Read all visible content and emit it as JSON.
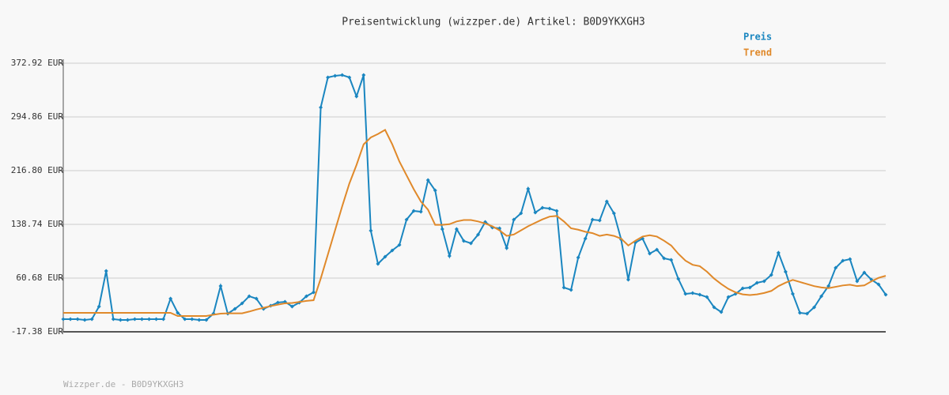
{
  "chart_data": {
    "type": "line",
    "title": "Preisentwicklung (wizzper.de) Artikel: B0D9YKXGH3",
    "footer": "Wizzper.de - B0D9YKXGH3",
    "ylim": [
      -17.38,
      372.92
    ],
    "yticks": [
      {
        "value": -17.38,
        "label": "-17.38 EUR"
      },
      {
        "value": 60.68,
        "label": "60.68 EUR"
      },
      {
        "value": 138.74,
        "label": "138.74 EUR"
      },
      {
        "value": 216.8,
        "label": "216.80 EUR"
      },
      {
        "value": 294.86,
        "label": "294.86 EUR"
      },
      {
        "value": 372.92,
        "label": "372.92 EUR"
      }
    ],
    "grid": true,
    "legend": "top-right",
    "series": [
      {
        "name": "Preis",
        "color": "#1a86c0",
        "markers": true,
        "values": [
          1.0,
          1.0,
          1.0,
          -0.2,
          1.0,
          19.4,
          71.0,
          1.0,
          -0.2,
          -0.2,
          1.0,
          1.0,
          1.0,
          1.0,
          1.0,
          30.8,
          10.2,
          1.0,
          1.0,
          -0.2,
          -0.2,
          9.0,
          49.2,
          9.0,
          15.9,
          23.9,
          34.3,
          30.8,
          15.9,
          20.5,
          25.1,
          26.2,
          19.4,
          25.1,
          34.3,
          40.0,
          308.7,
          352.3,
          354.6,
          355.7,
          352.3,
          324.7,
          355.7,
          129.6,
          81.4,
          91.7,
          100.9,
          108.9,
          145.6,
          158.3,
          157.1,
          203.0,
          188.1,
          131.9,
          92.8,
          131.9,
          114.7,
          111.2,
          123.8,
          142.2,
          134.2,
          133.0,
          104.3,
          145.6,
          154.8,
          190.4,
          156.0,
          162.8,
          161.7,
          158.3,
          46.9,
          43.5,
          90.5,
          118.1,
          145.6,
          144.5,
          172.0,
          154.8,
          116.9,
          58.4,
          112.3,
          118.1,
          96.3,
          102.0,
          89.4,
          87.1,
          59.5,
          37.7,
          38.9,
          36.6,
          33.1,
          18.2,
          11.3,
          33.1,
          37.7,
          45.8,
          46.9,
          53.8,
          56.1,
          65.3,
          97.4,
          69.9,
          37.7,
          10.2,
          9.0,
          18.2,
          34.3,
          49.2,
          75.6,
          85.9,
          88.2,
          56.1,
          68.7,
          58.4,
          51.5,
          36.6
        ]
      },
      {
        "name": "Trend",
        "color": "#e0892a",
        "markers": false,
        "values": [
          10.2,
          10.2,
          10.2,
          10.2,
          10.2,
          10.2,
          10.2,
          10.2,
          10.2,
          10.2,
          10.2,
          10.2,
          10.2,
          10.2,
          10.2,
          10.2,
          5.6,
          5.6,
          5.6,
          5.6,
          5.6,
          7.5,
          9.0,
          9.5,
          9.5,
          9.5,
          12,
          15,
          17.5,
          20,
          22,
          24,
          24.5,
          26,
          27.5,
          28.5,
          60,
          95,
          130,
          165,
          198,
          225,
          255,
          265,
          270,
          276,
          255,
          230,
          210,
          190,
          172,
          160,
          138,
          138,
          139,
          143,
          145,
          145,
          143,
          140,
          136,
          130,
          122,
          124,
          130,
          136,
          141,
          146,
          150,
          151,
          143,
          133,
          131,
          128,
          126,
          122,
          124,
          122,
          118,
          108,
          115,
          121,
          123,
          121,
          115,
          108,
          96,
          86,
          80,
          78,
          70,
          60,
          52,
          45,
          40,
          37,
          36,
          37,
          39,
          42,
          49,
          54,
          58,
          55,
          52,
          49,
          47,
          46,
          48,
          50,
          51,
          49,
          50,
          56,
          61,
          64
        ]
      }
    ]
  }
}
